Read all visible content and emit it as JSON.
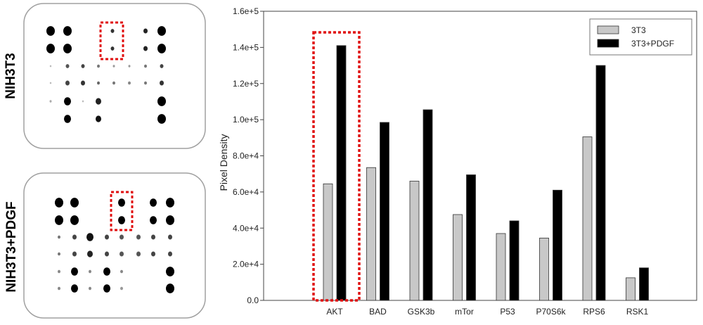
{
  "blots": {
    "top_label": "NIH3T3",
    "bottom_label": "NIH3T3+PDGF"
  },
  "colors": {
    "series_3t3": "#c8c8c8",
    "series_pdgf": "#000000",
    "highlight": "#e01010"
  },
  "chart_data": {
    "type": "bar",
    "categories": [
      "AKT",
      "BAD",
      "GSK3b",
      "mTor",
      "P53",
      "P70S6k",
      "RPS6",
      "RSK1"
    ],
    "series": [
      {
        "name": "3T3",
        "values": [
          64500,
          73500,
          66000,
          47500,
          37000,
          34500,
          90500,
          12500
        ]
      },
      {
        "name": "3T3+PDGF",
        "values": [
          141000,
          98500,
          105500,
          69500,
          44000,
          61000,
          130000,
          18000
        ]
      }
    ],
    "ylabel": "Pixel Density",
    "xlabel": "",
    "ylim": [
      0,
      160000
    ],
    "yticks": [
      "0.0",
      "2.0e+4",
      "4.0e+4",
      "6.0e+4",
      "8.0e+4",
      "1.0e+5",
      "1.2e+5",
      "1.4e+5",
      "1.6e+5"
    ],
    "legend_position": "top-right",
    "highlighted_category": "AKT"
  }
}
